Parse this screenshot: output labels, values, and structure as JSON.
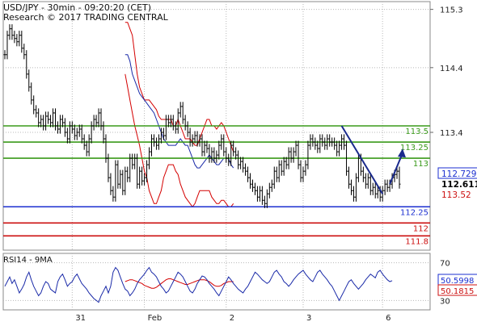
{
  "header": {
    "title": "USD/JPY - 30min - 09:20:20 (CET)",
    "subtitle": "Research © 2017 TRADING CENTRAL"
  },
  "colors": {
    "price": "#000000",
    "ma": "#1a2aa8",
    "bollinger": "#d40000",
    "support": "#1b2fd0",
    "support_deep": "#cc1010",
    "resistance": "#3a9a1a",
    "arrow": "#1a2a8c",
    "rsi": "#1a2aa8",
    "rsi_ma": "#d40000",
    "label_blue": "#1b2fd0",
    "label_red": "#cc1010",
    "label_green": "#3a9a1a",
    "grid": "#b8b8b8",
    "axis_text": "#222222"
  },
  "chart_data": [
    {
      "type": "line",
      "title": "USD/JPY - 30min - 09:20:20 (CET)",
      "subtitle": "Research © 2017 TRADING CENTRAL",
      "ylim": [
        111.58,
        115.42
      ],
      "y_ticks": [
        115.3,
        114.4,
        113.4
      ],
      "x_tick_labels": [
        "31",
        "Feb",
        "2",
        "3",
        "6"
      ],
      "x_tick_index": [
        28,
        58,
        92,
        124,
        157
      ],
      "series": [
        {
          "role": "price",
          "values": [
            114.6,
            114.9,
            115.0,
            114.9,
            114.85,
            114.8,
            114.9,
            114.7,
            114.6,
            114.3,
            114.1,
            113.9,
            113.75,
            113.7,
            113.55,
            113.6,
            113.5,
            113.65,
            113.6,
            113.55,
            113.7,
            113.5,
            113.45,
            113.6,
            113.55,
            113.4,
            113.3,
            113.5,
            113.45,
            113.35,
            113.4,
            113.45,
            113.3,
            113.2,
            113.1,
            113.3,
            113.5,
            113.6,
            113.55,
            113.7,
            113.5,
            113.3,
            113.0,
            112.7,
            112.5,
            112.4,
            112.9,
            112.6,
            112.75,
            112.5,
            112.8,
            112.7,
            113.0,
            112.9,
            113.0,
            112.6,
            112.8,
            112.65,
            112.7,
            112.9,
            113.1,
            113.3,
            113.25,
            113.2,
            113.3,
            113.4,
            113.35,
            113.6,
            113.55,
            113.6,
            113.5,
            113.45,
            113.7,
            113.8,
            113.6,
            113.5,
            113.4,
            113.25,
            113.3,
            113.35,
            113.25,
            113.3,
            113.1,
            113.2,
            113.15,
            113.0,
            113.1,
            113.0,
            113.05,
            113.2,
            113.3,
            113.1,
            113.0,
            112.95,
            113.2,
            113.1,
            113.05,
            112.9,
            112.95,
            112.85,
            112.8,
            112.7,
            112.6,
            112.55,
            112.5,
            112.4,
            112.5,
            112.35,
            112.3,
            112.45,
            112.55,
            112.6,
            112.8,
            112.7,
            112.9,
            112.8,
            112.95,
            112.9,
            113.1,
            113.0,
            113.1,
            113.2,
            112.9,
            112.7,
            112.8,
            112.9,
            113.2,
            113.3,
            113.25,
            113.2,
            113.15,
            113.3,
            113.25,
            113.2,
            113.3,
            113.25,
            113.25,
            113.2,
            113.1,
            113.2,
            113.3,
            113.2,
            112.8,
            112.6,
            112.5,
            112.4,
            112.7,
            113.0,
            112.8,
            112.7,
            112.6,
            112.7,
            112.5,
            112.55,
            112.45,
            112.5,
            112.4,
            112.5,
            112.6,
            112.55,
            112.6,
            112.7,
            112.75,
            112.8,
            112.6
          ]
        },
        {
          "role": "moving-average",
          "start": 100,
          "values": [
            114.6,
            114.6,
            114.5,
            114.3,
            114.2,
            114.1,
            114.0,
            113.95,
            113.9,
            113.85,
            113.8,
            113.75,
            113.7,
            113.6,
            113.5,
            113.4,
            113.3,
            113.25,
            113.2,
            113.2,
            113.2,
            113.2,
            113.25,
            113.3,
            113.25,
            113.2,
            113.2,
            113.1,
            113.0,
            112.9,
            112.85,
            112.85,
            112.9,
            112.95,
            113.0,
            113.05,
            113.0,
            112.95,
            112.9,
            112.9,
            112.95,
            113.0,
            113.0,
            113.0,
            112.9,
            112.85
          ]
        },
        {
          "role": "bollinger-upper",
          "start": 100,
          "values": [
            115.1,
            115.1,
            115.0,
            114.9,
            114.6,
            114.3,
            114.1,
            114.0,
            113.9,
            113.9,
            113.9,
            113.85,
            113.8,
            113.75,
            113.65,
            113.6,
            113.6,
            113.6,
            113.6,
            113.6,
            113.5,
            113.5,
            113.6,
            113.5,
            113.4,
            113.3,
            113.3,
            113.3,
            113.25,
            113.2,
            113.2,
            113.3,
            113.4,
            113.5,
            113.6,
            113.6,
            113.5,
            113.5,
            113.45,
            113.5,
            113.55,
            113.5,
            113.4,
            113.3,
            113.2,
            113.1
          ]
        },
        {
          "role": "bollinger-lower",
          "start": 100,
          "values": [
            114.3,
            114.1,
            113.9,
            113.7,
            113.5,
            113.35,
            113.2,
            113.0,
            112.8,
            112.7,
            112.5,
            112.4,
            112.3,
            112.3,
            112.4,
            112.5,
            112.7,
            112.8,
            112.9,
            112.9,
            112.9,
            112.8,
            112.75,
            112.6,
            112.5,
            112.4,
            112.35,
            112.3,
            112.25,
            112.3,
            112.4,
            112.5,
            112.5,
            112.5,
            112.5,
            112.5,
            112.4,
            112.35,
            112.3,
            112.3,
            112.35,
            112.35,
            112.3,
            112.25,
            112.25,
            112.3
          ]
        }
      ],
      "levels": [
        {
          "value": 113.5,
          "label": "113.5",
          "color": "resistance"
        },
        {
          "value": 113.25,
          "label": "113.25",
          "color": "resistance"
        },
        {
          "value": 113.0,
          "label": "113",
          "color": "resistance"
        },
        {
          "value": 112.25,
          "label": "112.25",
          "color": "support"
        },
        {
          "value": 112.0,
          "label": "112",
          "color": "support_deep"
        },
        {
          "value": 111.8,
          "label": "111.8",
          "color": "support_deep"
        }
      ],
      "trendline": {
        "from": [
          140,
          113.5
        ],
        "to": [
          157,
          112.45
        ]
      },
      "forecast_arrow": {
        "from": [
          160,
          112.6
        ],
        "to": [
          165,
          113.1
        ]
      },
      "badges": [
        {
          "value": "112.729",
          "color": "label_blue"
        },
        {
          "value": "112.611",
          "color": "price"
        },
        {
          "value": "113.52",
          "color": "label_red"
        }
      ]
    },
    {
      "type": "line",
      "title": "RSI14 - 9MA",
      "ylim": [
        20,
        80
      ],
      "y_ticks": [
        70,
        30
      ],
      "series": [
        {
          "role": "rsi",
          "values": [
            45,
            50,
            55,
            48,
            52,
            45,
            38,
            42,
            47,
            55,
            60,
            52,
            45,
            40,
            35,
            38,
            45,
            50,
            48,
            42,
            40,
            38,
            50,
            55,
            58,
            52,
            45,
            48,
            50,
            55,
            58,
            53,
            48,
            45,
            42,
            38,
            35,
            32,
            30,
            28,
            35,
            40,
            45,
            38,
            45,
            60,
            65,
            62,
            55,
            48,
            42,
            40,
            35,
            38,
            42,
            48,
            52,
            55,
            58,
            62,
            65,
            60,
            58,
            55,
            50,
            45,
            42,
            38,
            40,
            45,
            50,
            55,
            60,
            58,
            55,
            50,
            45,
            40,
            38,
            42,
            48,
            52,
            56,
            55,
            52,
            48,
            45,
            42,
            38,
            35,
            40,
            45,
            50,
            55,
            52,
            48,
            45,
            42,
            40,
            38,
            42,
            45,
            50,
            55,
            60,
            58,
            55,
            52,
            50,
            48,
            50,
            55,
            60,
            62,
            58,
            55,
            50,
            48,
            45,
            48,
            52,
            55,
            58,
            60,
            62,
            58,
            55,
            52,
            50,
            55,
            60,
            62,
            58,
            55,
            52,
            48,
            45,
            40,
            35,
            30,
            35,
            40,
            45,
            50,
            52,
            48,
            45,
            42,
            45,
            48,
            52,
            55,
            58,
            56,
            54,
            60,
            62,
            58,
            55,
            52,
            50,
            51
          ]
        },
        {
          "role": "rsi-ma",
          "start": 100,
          "values": [
            50,
            51,
            52,
            52,
            51,
            50,
            49,
            48,
            46,
            45,
            44,
            43,
            43,
            44,
            46,
            48,
            50,
            52,
            53,
            53,
            52,
            51,
            50,
            49,
            48,
            47,
            47,
            48,
            49,
            50,
            51,
            52,
            52,
            52,
            51,
            50,
            48,
            46,
            45,
            45,
            46,
            48,
            49,
            50,
            50,
            50
          ]
        }
      ],
      "badges": [
        {
          "value": "50.5998",
          "color": "label_blue"
        },
        {
          "value": "50.1815",
          "color": "label_red"
        }
      ]
    }
  ]
}
